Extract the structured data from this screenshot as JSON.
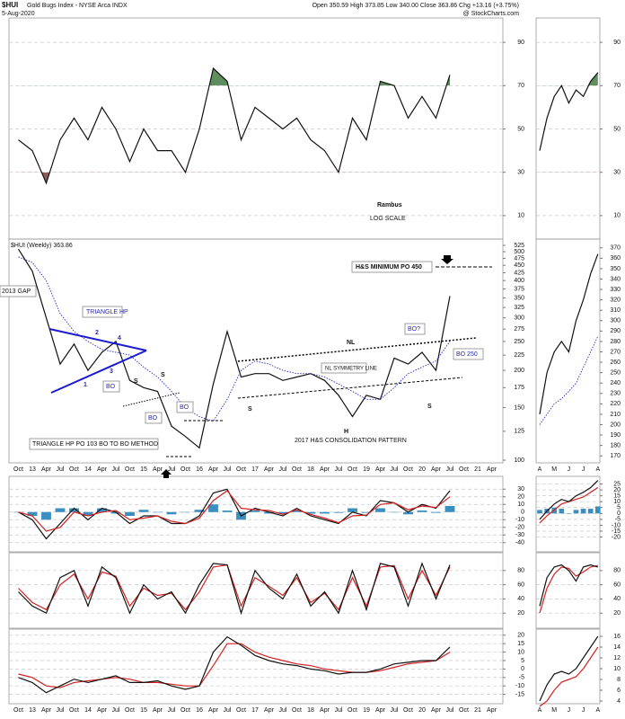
{
  "header": {
    "symbol": "$HUI",
    "name": "Gold Bugs Index - NYSE Arca INDX",
    "date": "5-Aug-2020",
    "quote": "Open 350.59 High 373.85 Low 340.00 Close 363.86 Chg +13.16 (+3.75%)",
    "source": "@ StockCharts.com"
  },
  "chart_data": [
    {
      "type": "line",
      "annotations": [
        "Rambus",
        "LOG SCALE"
      ],
      "ylim": [
        0,
        100
      ],
      "yticks": [
        10,
        30,
        50,
        70,
        90
      ],
      "grid": true,
      "upper_band": 70,
      "lower_band": 30,
      "upper_color": "#5f8f5f",
      "lower_color": "#8f5a5a",
      "series": [
        {
          "color": "#111111",
          "values": [
            45,
            40,
            25,
            45,
            55,
            45,
            60,
            50,
            35,
            50,
            40,
            40,
            30,
            50,
            78,
            72,
            45,
            60,
            55,
            50,
            55,
            45,
            40,
            30,
            55,
            45,
            72,
            70,
            55,
            65,
            55,
            75,
            null,
            null,
            null
          ]
        }
      ]
    },
    {
      "type": "line",
      "log_scale": true,
      "annotations": [
        "$HUI (Weekly) 363.86",
        "H&S MINIMUM PO 450",
        "2013 GAP",
        "TRIANGLE HP",
        "1",
        "2",
        "3",
        "4",
        "BO",
        "S",
        "S",
        "BO",
        "BO",
        "TRIANGLE HP PO 103 BO TO BO METHOD",
        "NL",
        "NL SYMMETRY LINE",
        "S",
        "H",
        "S",
        "2017 H&S CONSOLIDATION PATTERN",
        "BO?",
        "BO 250"
      ],
      "categories": [
        "Oct",
        "13",
        "Apr",
        "Jul",
        "Oct",
        "14",
        "Apr",
        "Jul",
        "Oct",
        "15",
        "Apr",
        "Jul",
        "Oct",
        "16",
        "Apr",
        "Jul",
        "Oct",
        "17",
        "Apr",
        "Jul",
        "Oct",
        "18",
        "Apr",
        "Jul",
        "Oct",
        "19",
        "Apr",
        "Jul",
        "Oct",
        "20",
        "Apr",
        "Jul",
        "Oct",
        "21",
        "Apr"
      ],
      "ylim": [
        100,
        525
      ],
      "yticks": [
        100,
        125,
        150,
        175,
        200,
        225,
        250,
        275,
        300,
        325,
        350,
        375,
        400,
        425,
        450,
        475,
        500,
        525
      ],
      "grid": false,
      "series": [
        {
          "color": "#111111",
          "values": [
            510,
            430,
            300,
            210,
            245,
            200,
            230,
            250,
            185,
            175,
            170,
            130,
            120,
            110,
            180,
            270,
            190,
            195,
            195,
            185,
            190,
            195,
            185,
            165,
            140,
            165,
            160,
            220,
            210,
            230,
            200,
            355,
            null,
            null,
            null
          ]
        },
        {
          "color": "#2b2bc0",
          "style": "dotted",
          "values": [
            480,
            460,
            400,
            310,
            270,
            250,
            235,
            230,
            225,
            205,
            190,
            170,
            150,
            140,
            135,
            160,
            200,
            215,
            210,
            200,
            195,
            195,
            190,
            180,
            170,
            160,
            160,
            175,
            195,
            205,
            215,
            250,
            null,
            null,
            null
          ]
        }
      ]
    },
    {
      "type": "line",
      "ylim": [
        -45,
        35
      ],
      "yticks": [
        30,
        20,
        10,
        0,
        -10,
        -20,
        -30,
        -40
      ],
      "grid": true,
      "series": [
        {
          "type": "bar",
          "color": "#3a8fc1",
          "values": [
            0,
            -5,
            -10,
            5,
            5,
            -5,
            5,
            -2,
            -5,
            3,
            0,
            -3,
            0,
            3,
            10,
            2,
            -10,
            2,
            -2,
            -2,
            2,
            -2,
            -2,
            -1,
            5,
            -1,
            5,
            0,
            -3,
            2,
            -1,
            8,
            null,
            null,
            null
          ]
        },
        {
          "color": "#111111",
          "values": [
            0,
            -10,
            -35,
            -15,
            5,
            -10,
            5,
            0,
            -15,
            -5,
            -5,
            -15,
            -15,
            -5,
            25,
            30,
            -5,
            5,
            0,
            -5,
            5,
            -5,
            -10,
            -15,
            0,
            -5,
            15,
            12,
            0,
            10,
            5,
            28,
            null,
            null,
            null
          ]
        },
        {
          "color": "#d42020",
          "values": [
            0,
            -5,
            -25,
            -20,
            0,
            -5,
            0,
            2,
            -10,
            -8,
            -5,
            -12,
            -15,
            -8,
            15,
            28,
            5,
            3,
            2,
            -3,
            3,
            -3,
            -8,
            -14,
            -5,
            -4,
            10,
            12,
            3,
            8,
            6,
            20,
            null,
            null,
            null
          ]
        }
      ]
    },
    {
      "type": "line",
      "ylim": [
        0,
        100
      ],
      "yticks": [
        80,
        60,
        40,
        20
      ],
      "grid": true,
      "series": [
        {
          "color": "#d42020",
          "values": [
            55,
            35,
            25,
            60,
            75,
            40,
            78,
            72,
            30,
            55,
            45,
            48,
            25,
            50,
            85,
            88,
            30,
            70,
            58,
            45,
            70,
            35,
            48,
            25,
            70,
            30,
            85,
            87,
            40,
            80,
            45,
            85,
            null,
            null,
            null
          ]
        },
        {
          "color": "#111111",
          "values": [
            50,
            30,
            20,
            70,
            80,
            30,
            85,
            70,
            20,
            60,
            40,
            50,
            20,
            60,
            90,
            88,
            20,
            80,
            55,
            40,
            75,
            30,
            50,
            20,
            80,
            25,
            90,
            85,
            30,
            90,
            40,
            88,
            null,
            null,
            null
          ]
        }
      ]
    },
    {
      "type": "line",
      "ylim": [
        -20,
        22
      ],
      "yticks": [
        20,
        15,
        10,
        5,
        0,
        -5,
        -10,
        -15
      ],
      "grid": true,
      "categories": [
        "Oct",
        "13",
        "Apr",
        "Jul",
        "Oct",
        "14",
        "Apr",
        "Jul",
        "Oct",
        "15",
        "Apr",
        "Jul",
        "Oct",
        "16",
        "Apr",
        "Jul",
        "Oct",
        "17",
        "Apr",
        "Jul",
        "Oct",
        "18",
        "Apr",
        "Jul",
        "Oct",
        "19",
        "Apr",
        "Jul",
        "Oct",
        "20",
        "Apr",
        "Jul",
        "Oct",
        "21",
        "Apr"
      ],
      "series": [
        {
          "color": "#d42020",
          "values": [
            -3,
            -5,
            -10,
            -11,
            -8,
            -7,
            -6,
            -5,
            -6,
            -8,
            -8,
            -9,
            -10,
            -10,
            2,
            15,
            15,
            10,
            7,
            5,
            3,
            2,
            0,
            -1,
            -2,
            -2,
            -1,
            1,
            3,
            4,
            5,
            10,
            null,
            null,
            null
          ]
        },
        {
          "color": "#111111",
          "values": [
            -5,
            -8,
            -14,
            -10,
            -6,
            -8,
            -6,
            -4,
            -8,
            -8,
            -7,
            -10,
            -12,
            -10,
            10,
            19,
            14,
            8,
            5,
            3,
            2,
            0,
            -1,
            -3,
            -2,
            -2,
            0,
            3,
            4,
            5,
            5,
            13,
            null,
            null,
            null
          ]
        }
      ]
    },
    {
      "type": "line",
      "ylim": [
        0,
        100
      ],
      "yticks": [
        10,
        30,
        50,
        70,
        90
      ],
      "grid": true,
      "upper_band": 70,
      "lower_band": 30,
      "upper_color": "#5f8f5f",
      "lower_color": "#8f5a5a",
      "series": [
        {
          "color": "#111111",
          "values": [
            40,
            55,
            65,
            70,
            62,
            68,
            65,
            72,
            76
          ]
        }
      ]
    },
    {
      "type": "line",
      "categories": [
        "A",
        null,
        "M",
        null,
        "J",
        null,
        "J",
        null,
        "A"
      ],
      "ylim": [
        165,
        375
      ],
      "yticks": [
        170,
        180,
        190,
        200,
        210,
        220,
        230,
        240,
        250,
        260,
        270,
        280,
        290,
        300,
        310,
        320,
        330,
        340,
        350,
        360,
        370
      ],
      "grid": false,
      "series": [
        {
          "color": "#111111",
          "values": [
            210,
            250,
            270,
            280,
            270,
            300,
            320,
            345,
            364
          ]
        },
        {
          "color": "#2b2bc0",
          "style": "dotted",
          "values": [
            200,
            210,
            220,
            225,
            232,
            240,
            255,
            270,
            285
          ]
        }
      ]
    },
    {
      "type": "line",
      "ylim": [
        -28,
        30
      ],
      "yticks": [
        25,
        20,
        15,
        10,
        5,
        0,
        -5,
        -10,
        -15,
        -20
      ],
      "grid": true,
      "series": [
        {
          "type": "bar",
          "color": "#3a8fc1",
          "values": [
            3,
            4,
            5,
            4,
            0,
            3,
            4,
            4,
            6
          ]
        },
        {
          "color": "#d42020",
          "values": [
            -8,
            -2,
            3,
            8,
            10,
            12,
            14,
            18,
            22
          ]
        },
        {
          "color": "#111111",
          "values": [
            -5,
            2,
            8,
            12,
            10,
            15,
            18,
            22,
            28
          ]
        }
      ]
    },
    {
      "type": "line",
      "ylim": [
        0,
        100
      ],
      "yticks": [
        80,
        60,
        40,
        20
      ],
      "grid": true,
      "series": [
        {
          "color": "#d42020",
          "values": [
            20,
            55,
            75,
            85,
            83,
            72,
            78,
            85,
            87
          ]
        },
        {
          "color": "#111111",
          "values": [
            30,
            70,
            85,
            88,
            80,
            65,
            85,
            88,
            85
          ]
        }
      ]
    },
    {
      "type": "line",
      "categories": [
        "A",
        null,
        "M",
        null,
        "J",
        null,
        "J",
        null,
        "A"
      ],
      "ylim": [
        3,
        17
      ],
      "yticks": [
        16,
        14,
        12,
        10,
        8,
        6,
        4
      ],
      "grid": false,
      "series": [
        {
          "color": "#d42020",
          "values": [
            3,
            4,
            6,
            7.5,
            8,
            8.5,
            10,
            12,
            14
          ]
        },
        {
          "color": "#111111",
          "values": [
            4,
            7,
            9,
            9.5,
            9,
            10,
            12,
            14,
            16
          ]
        }
      ]
    }
  ]
}
